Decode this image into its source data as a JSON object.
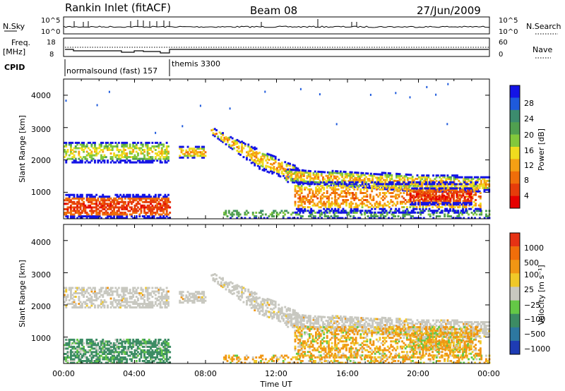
{
  "header": {
    "station": "Rankin Inlet (fitACF)",
    "beam": "Beam 08",
    "date": "27/Jun/2009"
  },
  "strips": {
    "nsky_label": "N.Sky",
    "nsky_ticks": [
      "10^5",
      "10^0"
    ],
    "nsearch_label": "N.Search",
    "nsearch_ticks": [
      "10^5",
      "10^0"
    ],
    "freq_label": "Freq.",
    "freq_unit": "[MHz]",
    "freq_ticks": [
      "18",
      "8"
    ],
    "nave_label": "Nave",
    "nave_ticks": [
      "60",
      "0"
    ],
    "cpid_label": "CPID",
    "cpid_modes": [
      "normalsound (fast) 157",
      "themis 3300"
    ]
  },
  "colors": {
    "power_scale": [
      "#1414e6",
      "#1e5adc",
      "#3c8c6e",
      "#50a050",
      "#82c83c",
      "#f0dc1e",
      "#f5a014",
      "#f06e0a",
      "#e63c0a",
      "#e60000"
    ],
    "velocity_scale": [
      "#1e3cb4",
      "#2d78a0",
      "#3c8c64",
      "#64c846",
      "#c8c8c0",
      "#f0c828",
      "#f09614",
      "#f06e0a",
      "#e63214"
    ],
    "ground_scatter": "#c8c8c0"
  },
  "chart_data": [
    {
      "type": "heatmap",
      "name": "power-panel",
      "ylabel": "Slant Range [km]",
      "yticks": [
        "4000",
        "3000",
        "2000",
        "1000"
      ],
      "ylim": [
        180,
        4500
      ],
      "colorbar_label": "Power [dB]",
      "colorbar_ticks": [
        "28",
        "24",
        "20",
        "16",
        "12",
        "8",
        "4"
      ],
      "colorbar_range": [
        0,
        30
      ]
    },
    {
      "type": "heatmap",
      "name": "velocity-panel",
      "xlabel": "Time UT",
      "ylabel": "Slant Range [km]",
      "xticks": [
        "00:00",
        "04:00",
        "08:00",
        "12:00",
        "16:00",
        "20:00",
        "00:00"
      ],
      "yticks": [
        "4000",
        "3000",
        "2000",
        "1000"
      ],
      "ylim": [
        180,
        4500
      ],
      "colorbar_label": "Velocity [m s⁻¹]",
      "colorbar_ticks": [
        "1000",
        "500",
        "100",
        "25",
        "−25",
        "−100",
        "−500",
        "−1000"
      ]
    }
  ]
}
